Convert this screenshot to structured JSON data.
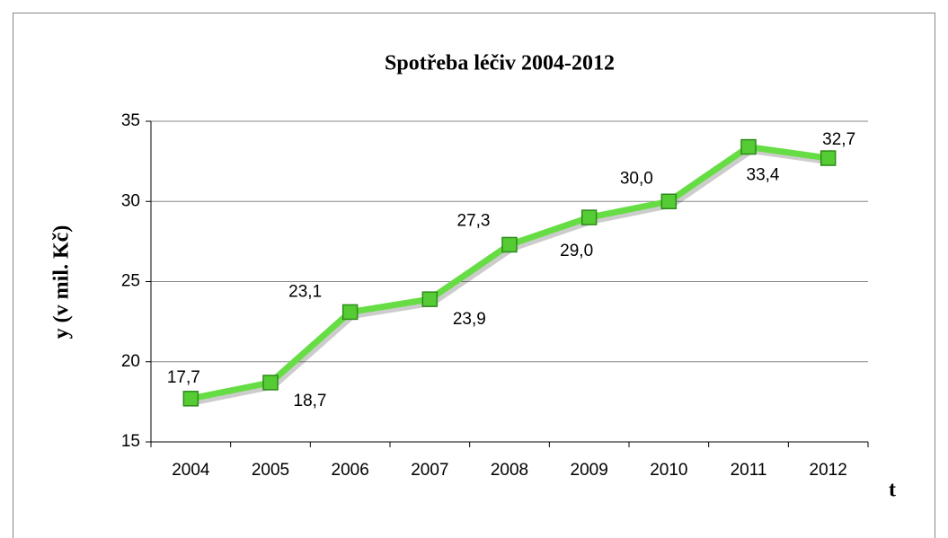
{
  "chart_data": {
    "type": "line",
    "title": "Spotřeba léčiv 2004-2012",
    "x_label": "t",
    "y_label": "y (v mil. Kč)",
    "categories": [
      "2004",
      "2005",
      "2006",
      "2007",
      "2008",
      "2009",
      "2010",
      "2011",
      "2012"
    ],
    "series": [
      {
        "name": "Spotřeba léčiv",
        "color": "#66dd44",
        "values": [
          17.7,
          18.7,
          23.1,
          23.9,
          27.3,
          29.0,
          30.0,
          33.4,
          32.7
        ],
        "value_labels": [
          "17,7",
          "18,7",
          "23,1",
          "23,9",
          "27,3",
          "29,0",
          "30,0",
          "33,4",
          "32,7"
        ]
      }
    ],
    "ylim": [
      15,
      35
    ],
    "yticks": [
      15,
      20,
      25,
      30,
      35
    ],
    "grid": true
  }
}
